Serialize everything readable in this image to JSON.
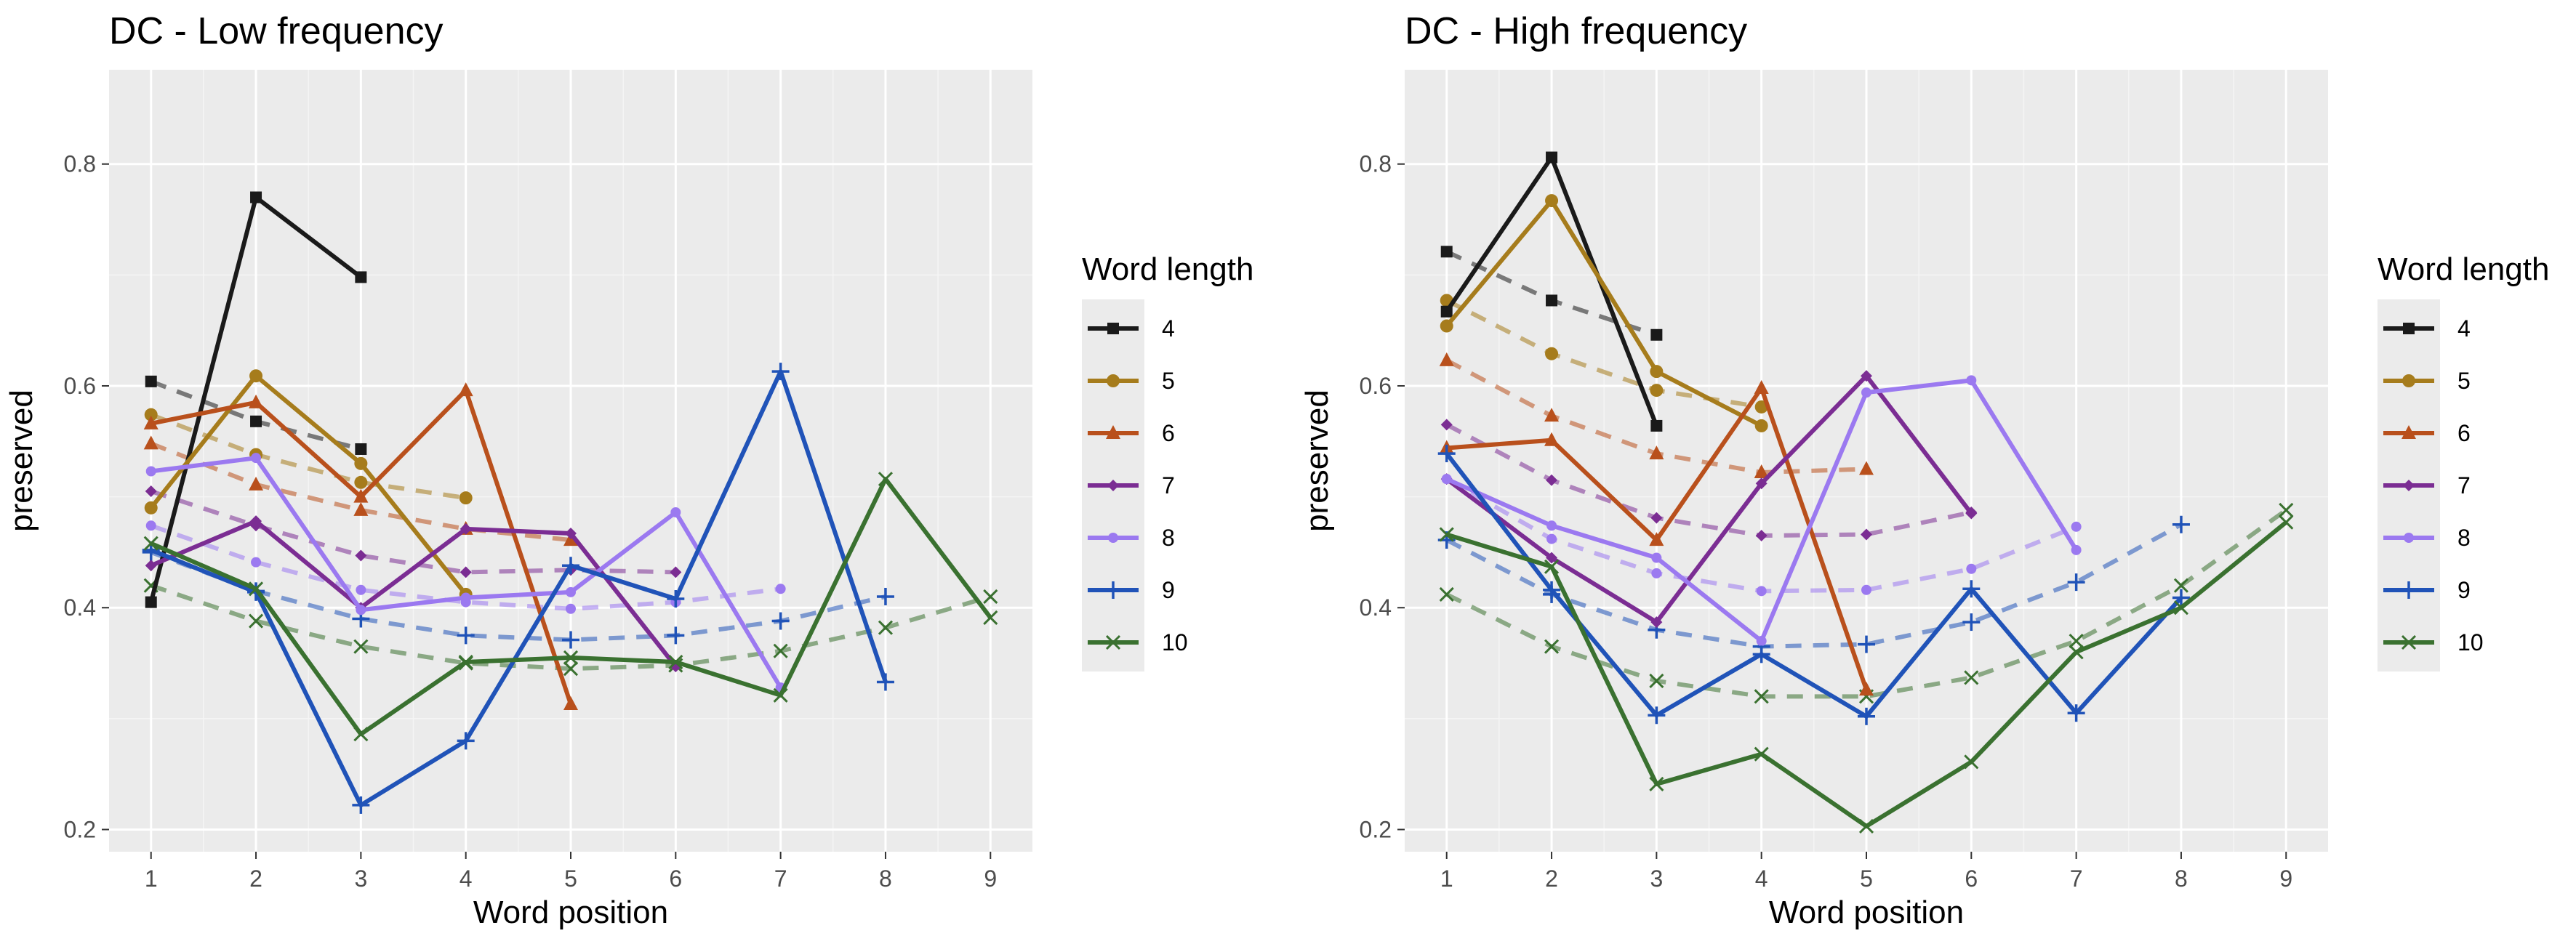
{
  "chart_data": [
    {
      "type": "line",
      "title": "DC - Low frequency",
      "xlabel": "Word position",
      "ylabel": "preserved",
      "x_ticks": [
        1,
        2,
        3,
        4,
        5,
        6,
        7,
        8,
        9
      ],
      "y_ticks": [
        0.2,
        0.4,
        0.6,
        0.8
      ],
      "xlim": [
        0.6,
        9.4
      ],
      "ylim": [
        0.18,
        0.885
      ],
      "grid": true,
      "legend": {
        "title": "Word length",
        "position": "right"
      },
      "series": [
        {
          "name": "4",
          "color": "#1a1a1a",
          "marker": "square",
          "solid": [
            [
              1,
              0.405
            ],
            [
              2,
              0.77
            ],
            [
              3,
              0.698
            ]
          ],
          "dashed": [
            [
              1,
              0.604
            ],
            [
              2,
              0.568
            ],
            [
              3,
              0.543
            ]
          ]
        },
        {
          "name": "5",
          "color": "#a67c1c",
          "marker": "circle",
          "solid": [
            [
              1,
              0.49
            ],
            [
              2,
              0.609
            ],
            [
              3,
              0.53
            ],
            [
              4,
              0.412
            ]
          ],
          "dashed": [
            [
              1,
              0.574
            ],
            [
              2,
              0.538
            ],
            [
              3,
              0.513
            ],
            [
              4,
              0.499
            ]
          ]
        },
        {
          "name": "6",
          "color": "#b9501c",
          "marker": "triangle",
          "solid": [
            [
              1,
              0.566
            ],
            [
              2,
              0.585
            ],
            [
              3,
              0.5
            ],
            [
              4,
              0.596
            ],
            [
              5,
              0.313
            ]
          ],
          "dashed": [
            [
              1,
              0.548
            ],
            [
              2,
              0.511
            ],
            [
              3,
              0.488
            ],
            [
              4,
              0.471
            ],
            [
              5,
              0.461
            ]
          ]
        },
        {
          "name": "7",
          "color": "#7b2d93",
          "marker": "diamond",
          "solid": [
            [
              1,
              0.438
            ],
            [
              2,
              0.478
            ],
            [
              3,
              0.4
            ],
            [
              4,
              0.471
            ],
            [
              5,
              0.467
            ],
            [
              6,
              0.347
            ]
          ],
          "dashed": [
            [
              1,
              0.505
            ],
            [
              2,
              0.474
            ],
            [
              3,
              0.447
            ],
            [
              4,
              0.432
            ],
            [
              5,
              0.434
            ],
            [
              6,
              0.432
            ]
          ]
        },
        {
          "name": "8",
          "color": "#9b79f0",
          "marker": "circle-small",
          "solid": [
            [
              1,
              0.523
            ],
            [
              2,
              0.535
            ],
            [
              3,
              0.398
            ],
            [
              4,
              0.409
            ],
            [
              5,
              0.414
            ],
            [
              6,
              0.486
            ],
            [
              7,
              0.328
            ]
          ],
          "dashed": [
            [
              1,
              0.474
            ],
            [
              2,
              0.441
            ],
            [
              3,
              0.416
            ],
            [
              4,
              0.405
            ],
            [
              5,
              0.399
            ],
            [
              6,
              0.405
            ],
            [
              7,
              0.417
            ]
          ]
        },
        {
          "name": "9",
          "color": "#2053b8",
          "marker": "plus",
          "solid": [
            [
              1,
              0.452
            ],
            [
              2,
              0.414
            ],
            [
              3,
              0.222
            ],
            [
              4,
              0.28
            ],
            [
              5,
              0.438
            ],
            [
              6,
              0.408
            ],
            [
              7,
              0.613
            ],
            [
              8,
              0.333
            ]
          ],
          "dashed": [
            [
              1,
              0.45
            ],
            [
              2,
              0.415
            ],
            [
              3,
              0.39
            ],
            [
              4,
              0.375
            ],
            [
              5,
              0.371
            ],
            [
              6,
              0.375
            ],
            [
              7,
              0.388
            ],
            [
              8,
              0.41
            ]
          ]
        },
        {
          "name": "10",
          "color": "#3a7130",
          "marker": "x",
          "solid": [
            [
              1,
              0.458
            ],
            [
              2,
              0.417
            ],
            [
              3,
              0.286
            ],
            [
              4,
              0.351
            ],
            [
              5,
              0.355
            ],
            [
              6,
              0.351
            ],
            [
              7,
              0.321
            ],
            [
              8,
              0.516
            ],
            [
              9,
              0.391
            ]
          ],
          "dashed": [
            [
              1,
              0.42
            ],
            [
              2,
              0.388
            ],
            [
              3,
              0.365
            ],
            [
              4,
              0.35
            ],
            [
              5,
              0.345
            ],
            [
              6,
              0.348
            ],
            [
              7,
              0.361
            ],
            [
              8,
              0.382
            ],
            [
              9,
              0.41
            ]
          ]
        }
      ]
    },
    {
      "type": "line",
      "title": "DC - High frequency",
      "xlabel": "Word position",
      "ylabel": "preserved",
      "x_ticks": [
        1,
        2,
        3,
        4,
        5,
        6,
        7,
        8,
        9
      ],
      "y_ticks": [
        0.2,
        0.4,
        0.6,
        0.8
      ],
      "xlim": [
        0.6,
        9.4
      ],
      "ylim": [
        0.18,
        0.885
      ],
      "grid": true,
      "legend": {
        "title": "Word length",
        "position": "right"
      },
      "series": [
        {
          "name": "4",
          "color": "#1a1a1a",
          "marker": "square",
          "solid": [
            [
              1,
              0.667
            ],
            [
              2,
              0.806
            ],
            [
              3,
              0.564
            ]
          ],
          "dashed": [
            [
              1,
              0.721
            ],
            [
              2,
              0.677
            ],
            [
              3,
              0.646
            ]
          ]
        },
        {
          "name": "5",
          "color": "#a67c1c",
          "marker": "circle",
          "solid": [
            [
              1,
              0.654
            ],
            [
              2,
              0.767
            ],
            [
              3,
              0.613
            ],
            [
              4,
              0.564
            ]
          ],
          "dashed": [
            [
              1,
              0.677
            ],
            [
              2,
              0.629
            ],
            [
              3,
              0.596
            ],
            [
              4,
              0.581
            ]
          ]
        },
        {
          "name": "6",
          "color": "#b9501c",
          "marker": "triangle",
          "solid": [
            [
              1,
              0.544
            ],
            [
              2,
              0.551
            ],
            [
              3,
              0.461
            ],
            [
              4,
              0.598
            ],
            [
              5,
              0.326
            ]
          ],
          "dashed": [
            [
              1,
              0.623
            ],
            [
              2,
              0.573
            ],
            [
              3,
              0.539
            ],
            [
              4,
              0.522
            ],
            [
              5,
              0.525
            ]
          ]
        },
        {
          "name": "7",
          "color": "#7b2d93",
          "marker": "diamond",
          "solid": [
            [
              1,
              0.516
            ],
            [
              2,
              0.445
            ],
            [
              3,
              0.387
            ],
            [
              4,
              0.512
            ],
            [
              5,
              0.609
            ],
            [
              6,
              0.485
            ]
          ],
          "dashed": [
            [
              1,
              0.565
            ],
            [
              2,
              0.515
            ],
            [
              3,
              0.481
            ],
            [
              4,
              0.465
            ],
            [
              5,
              0.466
            ],
            [
              6,
              0.486
            ]
          ]
        },
        {
          "name": "8",
          "color": "#9b79f0",
          "marker": "circle-small",
          "solid": [
            [
              1,
              0.516
            ],
            [
              2,
              0.474
            ],
            [
              3,
              0.445
            ],
            [
              4,
              0.37
            ],
            [
              5,
              0.594
            ],
            [
              6,
              0.605
            ],
            [
              7,
              0.452
            ]
          ],
          "dashed": [
            [
              1,
              0.516
            ],
            [
              2,
              0.462
            ],
            [
              3,
              0.431
            ],
            [
              4,
              0.415
            ],
            [
              5,
              0.416
            ],
            [
              6,
              0.435
            ],
            [
              7,
              0.473
            ]
          ]
        },
        {
          "name": "9",
          "color": "#2053b8",
          "marker": "plus",
          "solid": [
            [
              1,
              0.539
            ],
            [
              2,
              0.416
            ],
            [
              3,
              0.303
            ],
            [
              4,
              0.358
            ],
            [
              5,
              0.302
            ],
            [
              6,
              0.417
            ],
            [
              7,
              0.305
            ],
            [
              8,
              0.409
            ]
          ],
          "dashed": [
            [
              1,
              0.461
            ],
            [
              2,
              0.412
            ],
            [
              3,
              0.38
            ],
            [
              4,
              0.365
            ],
            [
              5,
              0.367
            ],
            [
              6,
              0.387
            ],
            [
              7,
              0.423
            ],
            [
              8,
              0.475
            ]
          ]
        },
        {
          "name": "10",
          "color": "#3a7130",
          "marker": "x",
          "solid": [
            [
              1,
              0.466
            ],
            [
              2,
              0.437
            ],
            [
              3,
              0.241
            ],
            [
              4,
              0.268
            ],
            [
              5,
              0.203
            ],
            [
              6,
              0.261
            ],
            [
              7,
              0.36
            ],
            [
              8,
              0.4
            ],
            [
              9,
              0.477
            ]
          ],
          "dashed": [
            [
              1,
              0.412
            ],
            [
              2,
              0.365
            ],
            [
              3,
              0.334
            ],
            [
              4,
              0.32
            ],
            [
              5,
              0.32
            ],
            [
              6,
              0.337
            ],
            [
              7,
              0.37
            ],
            [
              8,
              0.42
            ],
            [
              9,
              0.488
            ]
          ]
        }
      ]
    }
  ]
}
